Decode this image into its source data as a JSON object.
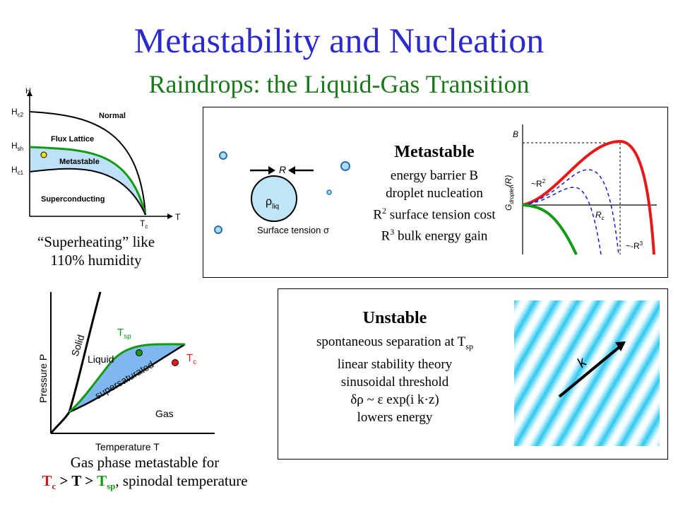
{
  "title": "Metastability and Nucleation",
  "subtitle": "Raindrops: the Liquid-Gas Transition",
  "superconductor": {
    "axis_h": "H",
    "axis_t": "T",
    "hc2": "H",
    "hc2_sub": "c2",
    "hsh": "H",
    "hsh_sub": "sh",
    "hc1": "H",
    "hc1_sub": "c1",
    "tc": "T",
    "tc_sub": "c",
    "normal": "Normal",
    "flux": "Flux Lattice",
    "metastable": "Metastable",
    "superconducting": "Superconducting",
    "caption_line1": "“Superheating” like",
    "caption_line2": "110% humidity"
  },
  "metastable_panel": {
    "heading": "Metastable",
    "line1": "energy barrier B",
    "line2": "droplet nucleation",
    "line3_a": "R",
    "line3_sup": "2",
    "line3_b": " surface tension cost",
    "line4_a": "R",
    "line4_sup": "3",
    "line4_b": " bulk energy gain",
    "droplet_r": "R",
    "rho": "ρ",
    "rho_sub": "liq",
    "surface_tension": "Surface tension σ",
    "graph_b": "B",
    "graph_y_label": "G",
    "graph_y_sub": "droplet",
    "graph_y_arg": "(R)",
    "graph_r2": "~R",
    "graph_r2_sup": "2",
    "graph_rc": "R",
    "graph_rc_sub": "c",
    "graph_r3": "~-R",
    "graph_r3_sup": "3"
  },
  "phase_diagram": {
    "y_label": "Pressure P",
    "x_label": "Temperature T",
    "solid": "Solid",
    "liquid": "Liquid",
    "gas": "Gas",
    "supersaturated": "supersaturated",
    "tsp": "T",
    "tsp_sub": "sp",
    "tc": "T",
    "tc_sub": "c",
    "caption_line1": "Gas phase metastable for",
    "cap2_tc": "T",
    "cap2_tc_sub": "c",
    "cap2_gt1": " > ",
    "cap2_t": "T",
    "cap2_gt2": " > ",
    "cap2_tsp": "T",
    "cap2_tsp_sub": "sp",
    "cap2_rest": ", spinodal temperature"
  },
  "unstable_panel": {
    "heading": "Unstable",
    "line1_a": "spontaneous separation at T",
    "line1_sub": "sp",
    "line2": "linear stability theory",
    "line3": "sinusoidal threshold",
    "line4": "δρ ~ ε exp(i k·z)",
    "line5": "lowers energy",
    "k_label": "k"
  },
  "colors": {
    "title": "#2a2acf",
    "subtitle": "#1a7a1a",
    "metastable_region": "#bfe1f7",
    "green_curve": "#129a12",
    "red_curve": "#e81818",
    "blue_dashed": "#1a1acc",
    "stripe_cyan": "#2cc8f0"
  }
}
